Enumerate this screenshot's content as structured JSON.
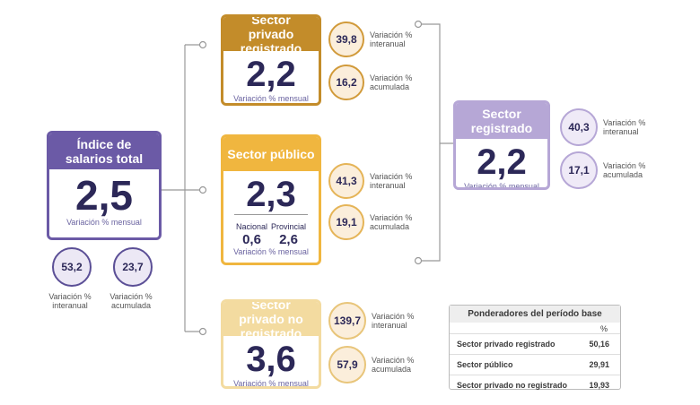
{
  "total": {
    "title": "Índice de salarios total",
    "value": "2,5",
    "caption": "Variación % mensual",
    "circles": [
      {
        "value": "53,2",
        "label": "Variación % interanual"
      },
      {
        "value": "23,7",
        "label": "Variación % acumulada"
      }
    ]
  },
  "private_registered": {
    "title": "Sector privado registrado",
    "value": "2,2",
    "caption": "Variación % mensual",
    "circles": [
      {
        "value": "39,8",
        "label": "Variación % interanual"
      },
      {
        "value": "16,2",
        "label": "Variación % acumulada"
      }
    ]
  },
  "public": {
    "title": "Sector público",
    "value": "2,3",
    "breakdown": [
      {
        "label": "Nacional",
        "value": "0,6"
      },
      {
        "label": "Provincial",
        "value": "2,6"
      }
    ],
    "caption": "Variación % mensual",
    "circles": [
      {
        "value": "41,3",
        "label": "Variación % interanual"
      },
      {
        "value": "19,1",
        "label": "Variación % acumulada"
      }
    ]
  },
  "private_unregistered": {
    "title": "Sector privado no registrado",
    "value": "3,6",
    "caption": "Variación % mensual",
    "circles": [
      {
        "value": "139,7",
        "label": "Variación % interanual"
      },
      {
        "value": "57,9",
        "label": "Variación % acumulada"
      }
    ]
  },
  "registered": {
    "title": "Sector registrado",
    "value": "2,2",
    "caption": "Variación % mensual",
    "circles": [
      {
        "value": "40,3",
        "label": "Variación % interanual"
      },
      {
        "value": "17,1",
        "label": "Variación % acumulada"
      }
    ]
  },
  "weights": {
    "title": "Ponderadores del período base",
    "unit": "%",
    "rows": [
      [
        "Sector privado registrado",
        "50,16"
      ],
      [
        "Sector público",
        "29,91"
      ],
      [
        "Sector privado no registrado",
        "19,93"
      ]
    ]
  }
}
